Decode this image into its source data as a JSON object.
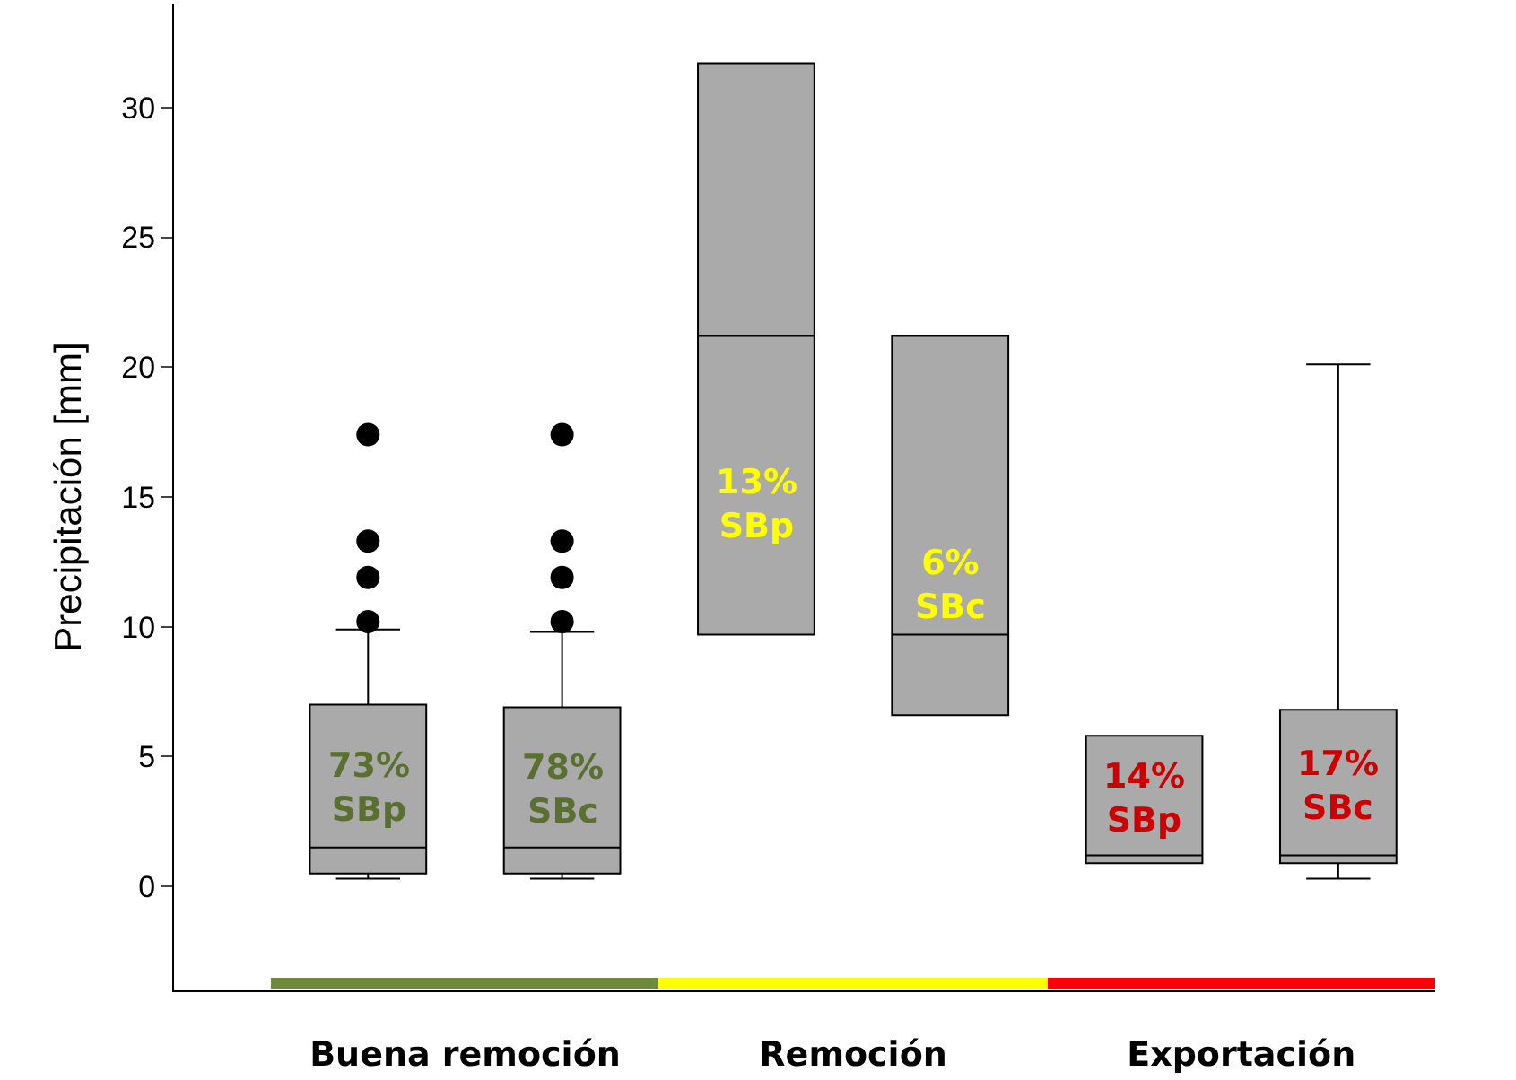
{
  "chart_data": {
    "type": "box",
    "ylabel": "Precipitación [mm]",
    "categories": [
      "Buena remoción",
      "Remoción",
      "Exportación"
    ],
    "series": [
      {
        "color": "#aaaaaa",
        "boxes": [
          {
            "low": 0.3,
            "q1": 0.5,
            "median": 1.5,
            "q3": 7.0,
            "high": 9.9,
            "outliers": [
              17.4,
              13.3,
              11.9,
              10.2
            ]
          },
          {
            "low": 9.7,
            "q1": 9.7,
            "median": 21.2,
            "q3": 31.7,
            "high": 31.7
          },
          {
            "low": 0.9,
            "q1": 0.9,
            "median": 1.2,
            "q3": 5.8,
            "high": 5.8
          }
        ]
      },
      {
        "color": "#aaaaaa",
        "boxes": [
          {
            "low": 0.3,
            "q1": 0.5,
            "median": 1.5,
            "q3": 6.9,
            "high": 9.8,
            "outliers": [
              17.4,
              13.3,
              11.9,
              10.2
            ]
          },
          {
            "low": 6.6,
            "q1": 6.6,
            "median": 9.7,
            "q3": 21.2,
            "high": 21.2
          },
          {
            "low": 0.3,
            "q1": 0.9,
            "median": 1.2,
            "q3": 6.8,
            "high": 20.1
          }
        ]
      }
    ],
    "annotations": [
      "73%\nSBp",
      "13%\nSBp",
      "14%\nSBp",
      "78%\nSBc",
      "6%\nSBc",
      "17%\nSBc"
    ],
    "ylim": [
      -4,
      34
    ],
    "yticks": [
      0,
      5,
      10,
      15,
      20,
      25,
      30
    ],
    "grid": false,
    "marker": "circle"
  }
}
